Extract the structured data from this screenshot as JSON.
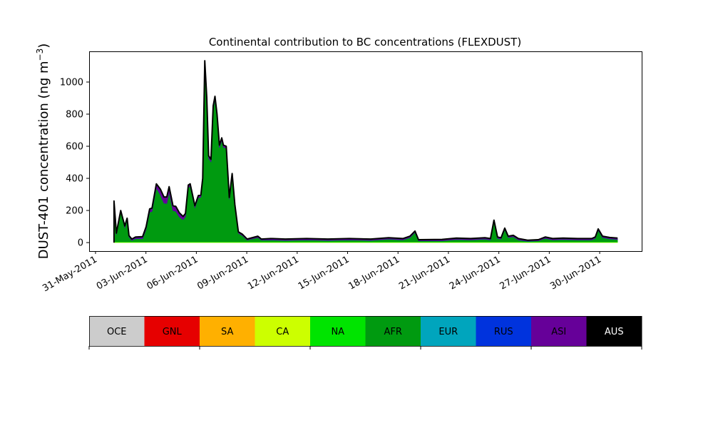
{
  "chart_data": {
    "type": "area",
    "stacked": true,
    "title": "Continental contribution to BC concentrations (FLEXDUST)",
    "ylabel": "DUST-401 concentration (ng m",
    "ylabel_sup": "−3",
    "ylabel_close": ")",
    "xlabel": "",
    "x_units": "days since 31-May-2011",
    "xlim": [
      -0.38,
      32.5
    ],
    "ylim": [
      -53,
      1191
    ],
    "yticks": [
      0,
      200,
      400,
      600,
      800,
      1000
    ],
    "xticks": [
      {
        "day": 0,
        "label": "31-May-2011"
      },
      {
        "day": 3,
        "label": "03-Jun-2011"
      },
      {
        "day": 6,
        "label": "06-Jun-2011"
      },
      {
        "day": 9,
        "label": "09-Jun-2011"
      },
      {
        "day": 12,
        "label": "12-Jun-2011"
      },
      {
        "day": 15,
        "label": "15-Jun-2011"
      },
      {
        "day": 18,
        "label": "18-Jun-2011"
      },
      {
        "day": 21,
        "label": "21-Jun-2011"
      },
      {
        "day": 24,
        "label": "24-Jun-2011"
      },
      {
        "day": 27,
        "label": "27-Jun-2011"
      },
      {
        "day": 30,
        "label": "30-Jun-2011"
      }
    ],
    "grid": false,
    "x": [
      1.1,
      1.24,
      1.5,
      1.74,
      1.88,
      1.99,
      2.16,
      2.38,
      2.8,
      3.01,
      3.22,
      3.36,
      3.62,
      3.86,
      4.07,
      4.24,
      4.38,
      4.61,
      4.78,
      4.99,
      5.21,
      5.35,
      5.52,
      5.63,
      5.91,
      6.12,
      6.27,
      6.38,
      6.5,
      6.62,
      6.73,
      6.87,
      7.0,
      7.11,
      7.23,
      7.37,
      7.51,
      7.61,
      7.78,
      7.96,
      8.13,
      8.29,
      8.5,
      8.74,
      9.02,
      9.66,
      9.87,
      10.44,
      11.29,
      12.56,
      13.83,
      15.1,
      16.38,
      17.44,
      18.29,
      18.71,
      19.01,
      19.22,
      20.62,
      21.47,
      22.32,
      23.17,
      23.5,
      23.71,
      23.92,
      24.13,
      24.35,
      24.56,
      24.86,
      25.16,
      25.71,
      26.35,
      26.77,
      27.2,
      27.83,
      28.68,
      29.53,
      29.74,
      29.91,
      30.17,
      30.59,
      31.06
    ],
    "total": [
      259,
      59,
      200,
      104,
      152,
      44,
      22,
      35,
      37,
      98,
      210,
      215,
      366,
      333,
      284,
      284,
      348,
      230,
      225,
      185,
      163,
      181,
      359,
      366,
      230,
      293,
      296,
      400,
      1133,
      904,
      541,
      519,
      852,
      911,
      800,
      607,
      652,
      607,
      600,
      281,
      430,
      237,
      67,
      52,
      22,
      40,
      22,
      25,
      22,
      25,
      22,
      25,
      22,
      30,
      25,
      40,
      72,
      18,
      20,
      28,
      25,
      30,
      25,
      140,
      35,
      30,
      90,
      40,
      45,
      25,
      15,
      18,
      35,
      25,
      28,
      25,
      25,
      35,
      85,
      40,
      32,
      28
    ],
    "series": [
      {
        "name": "CA",
        "color": "#ccff00",
        "constant": 2
      },
      {
        "name": "NA",
        "color": "#00e400",
        "constant": 3
      },
      {
        "name": "AFR",
        "color": "#009a10",
        "remainder": true
      },
      {
        "name": "RUS",
        "color": "#0033dd",
        "constant": 1
      },
      {
        "name": "ASI",
        "color": "#660099",
        "values": [
          10,
          8,
          10,
          10,
          10,
          8,
          8,
          10,
          12,
          15,
          20,
          20,
          25,
          35,
          38,
          40,
          35,
          30,
          30,
          25,
          20,
          18,
          15,
          15,
          12,
          12,
          12,
          12,
          20,
          20,
          15,
          15,
          20,
          20,
          18,
          15,
          15,
          12,
          12,
          10,
          10,
          8,
          8,
          8,
          6,
          8,
          6,
          8,
          8,
          8,
          8,
          8,
          8,
          8,
          8,
          8,
          8,
          6,
          8,
          8,
          8,
          8,
          8,
          8,
          8,
          8,
          8,
          8,
          8,
          8,
          6,
          6,
          8,
          8,
          8,
          8,
          8,
          8,
          8,
          8,
          8,
          8
        ]
      }
    ],
    "legend": {
      "placement": "bottom colorbar",
      "entries": [
        {
          "label": "OCE",
          "color": "#cccccc",
          "text_color": "#000000"
        },
        {
          "label": "GNL",
          "color": "#e60000",
          "text_color": "#000000"
        },
        {
          "label": "SA",
          "color": "#ffb000",
          "text_color": "#000000"
        },
        {
          "label": "CA",
          "color": "#ccff00",
          "text_color": "#000000"
        },
        {
          "label": "NA",
          "color": "#00e400",
          "text_color": "#000000"
        },
        {
          "label": "AFR",
          "color": "#009a10",
          "text_color": "#000000"
        },
        {
          "label": "EUR",
          "color": "#00a5bd",
          "text_color": "#000000"
        },
        {
          "label": "RUS",
          "color": "#0033dd",
          "text_color": "#000000"
        },
        {
          "label": "ASI",
          "color": "#660099",
          "text_color": "#000000"
        },
        {
          "label": "AUS",
          "color": "#000000",
          "text_color": "#ffffff"
        }
      ]
    }
  }
}
